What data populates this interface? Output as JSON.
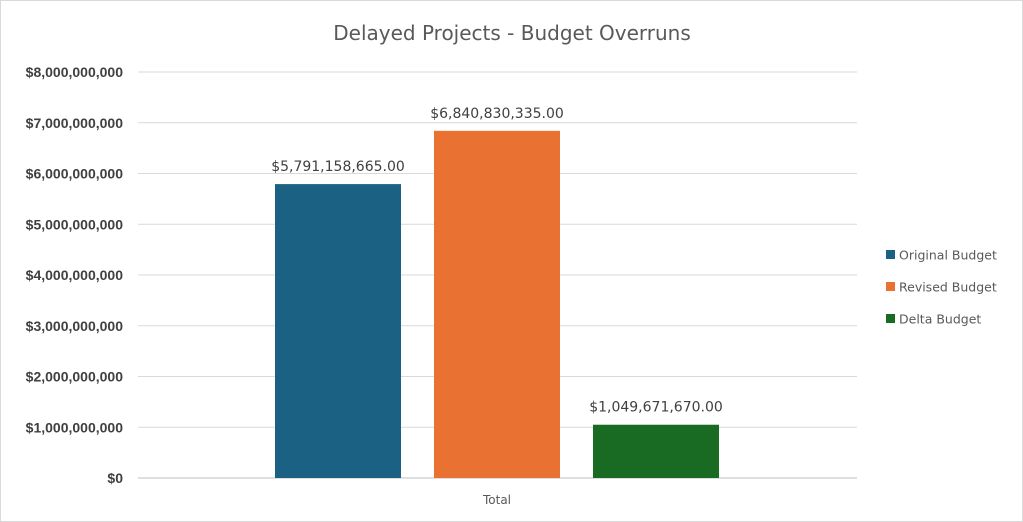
{
  "chart_data": {
    "type": "bar",
    "title": "Delayed Projects - Budget Overruns",
    "categories": [
      "Total"
    ],
    "series": [
      {
        "name": "Original Budget",
        "values": [
          5791158665.0
        ],
        "color": "#1a6184",
        "label": "$5,791,158,665.00"
      },
      {
        "name": "Revised Budget",
        "values": [
          6840830335.0
        ],
        "color": "#e97132",
        "label": "$6,840,830,335.00"
      },
      {
        "name": "Delta Budget",
        "values": [
          1049671670.0
        ],
        "color": "#196b24",
        "label": "$1,049,671,670.00"
      }
    ],
    "ylim": [
      0,
      8000000000
    ],
    "yticks": [
      0,
      1000000000,
      2000000000,
      3000000000,
      4000000000,
      5000000000,
      6000000000,
      7000000000,
      8000000000
    ],
    "ytick_labels": [
      "$0",
      "$1,000,000,000",
      "$2,000,000,000",
      "$3,000,000,000",
      "$4,000,000,000",
      "$5,000,000,000",
      "$6,000,000,000",
      "$7,000,000,000",
      "$8,000,000,000"
    ],
    "xlabel": "",
    "ylabel": "",
    "grid": true,
    "legend_position": "right"
  }
}
